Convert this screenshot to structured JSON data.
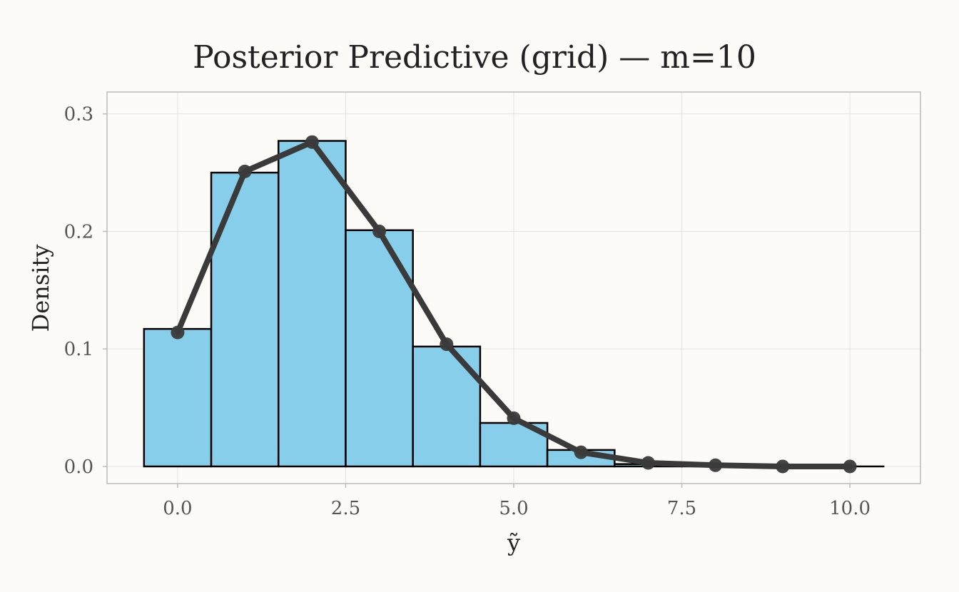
{
  "chart_data": {
    "type": "bar",
    "title": "Posterior Predictive (grid) — m=10",
    "xlabel": "ỹ",
    "ylabel": "Density",
    "xlim": [
      -1.05,
      11.05
    ],
    "ylim": [
      -0.0146,
      0.3186
    ],
    "xticks": [
      0.0,
      2.5,
      5.0,
      7.5,
      10.0
    ],
    "xtick_labels": [
      "0.0",
      "2.5",
      "5.0",
      "7.5",
      "10.0"
    ],
    "yticks": [
      0.0,
      0.1,
      0.2,
      0.3
    ],
    "ytick_labels": [
      "0.0",
      "0.1",
      "0.2",
      "0.3"
    ],
    "grid": true,
    "legend": "none",
    "histogram": {
      "bin_width": 1,
      "x": [
        0,
        1,
        2,
        3,
        4,
        5,
        6,
        7,
        8,
        9,
        10
      ],
      "values": [
        0.117,
        0.25,
        0.277,
        0.201,
        0.102,
        0.037,
        0.014,
        0.002,
        0.0,
        0.0,
        0.0
      ],
      "fill": "#87ceeb",
      "edge": "#000000"
    },
    "line": {
      "x": [
        0,
        1,
        2,
        3,
        4,
        5,
        6,
        7,
        8,
        9,
        10
      ],
      "values": [
        0.114,
        0.251,
        0.276,
        0.2,
        0.104,
        0.041,
        0.012,
        0.003,
        0.001,
        0.0,
        0.0
      ],
      "color": "#3a3a3a"
    }
  }
}
